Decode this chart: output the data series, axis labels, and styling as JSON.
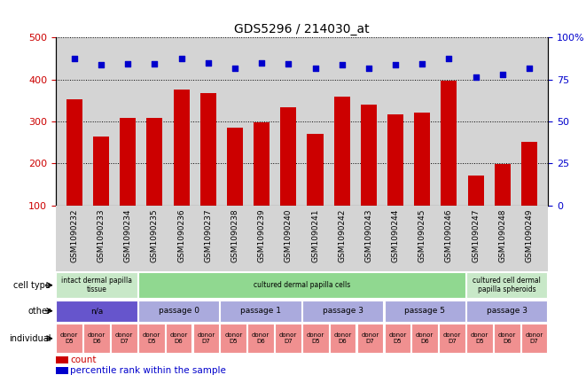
{
  "title": "GDS5296 / 214030_at",
  "samples": [
    "GSM1090232",
    "GSM1090233",
    "GSM1090234",
    "GSM1090235",
    "GSM1090236",
    "GSM1090237",
    "GSM1090238",
    "GSM1090239",
    "GSM1090240",
    "GSM1090241",
    "GSM1090242",
    "GSM1090243",
    "GSM1090244",
    "GSM1090245",
    "GSM1090246",
    "GSM1090247",
    "GSM1090248",
    "GSM1090249"
  ],
  "counts": [
    353,
    265,
    309,
    309,
    377,
    368,
    285,
    298,
    333,
    270,
    360,
    340,
    317,
    321,
    398,
    171,
    198,
    252
  ],
  "percentile_vals": [
    450,
    435,
    437,
    437,
    450,
    440,
    427,
    440,
    438,
    426,
    436,
    426,
    436,
    437,
    450,
    406,
    411,
    426
  ],
  "ylim_left": [
    100,
    500
  ],
  "yticks_left": [
    100,
    200,
    300,
    400,
    500
  ],
  "yticks_right": [
    0,
    25,
    50,
    75,
    100
  ],
  "bar_color": "#cc0000",
  "dot_color": "#0000cc",
  "chart_bg": "#d4d4d4",
  "cell_type_groups": [
    {
      "label": "intact dermal papilla\ntissue",
      "start": 0,
      "end": 3,
      "color": "#c8e8c8"
    },
    {
      "label": "cultured dermal papilla cells",
      "start": 3,
      "end": 15,
      "color": "#90d890"
    },
    {
      "label": "cultured cell dermal\npapilla spheroids",
      "start": 15,
      "end": 18,
      "color": "#c8e8c8"
    }
  ],
  "other_groups": [
    {
      "label": "n/a",
      "start": 0,
      "end": 3,
      "color": "#6655cc"
    },
    {
      "label": "passage 0",
      "start": 3,
      "end": 6,
      "color": "#aaaadd"
    },
    {
      "label": "passage 1",
      "start": 6,
      "end": 9,
      "color": "#aaaadd"
    },
    {
      "label": "passage 3",
      "start": 9,
      "end": 12,
      "color": "#aaaadd"
    },
    {
      "label": "passage 5",
      "start": 12,
      "end": 15,
      "color": "#aaaadd"
    },
    {
      "label": "passage 3",
      "start": 15,
      "end": 18,
      "color": "#aaaadd"
    }
  ],
  "individual_groups": [
    {
      "label": "donor\nD5",
      "start": 0,
      "end": 1
    },
    {
      "label": "donor\nD6",
      "start": 1,
      "end": 2
    },
    {
      "label": "donor\nD7",
      "start": 2,
      "end": 3
    },
    {
      "label": "donor\nD5",
      "start": 3,
      "end": 4
    },
    {
      "label": "donor\nD6",
      "start": 4,
      "end": 5
    },
    {
      "label": "donor\nD7",
      "start": 5,
      "end": 6
    },
    {
      "label": "donor\nD5",
      "start": 6,
      "end": 7
    },
    {
      "label": "donor\nD6",
      "start": 7,
      "end": 8
    },
    {
      "label": "donor\nD7",
      "start": 8,
      "end": 9
    },
    {
      "label": "donor\nD5",
      "start": 9,
      "end": 10
    },
    {
      "label": "donor\nD6",
      "start": 10,
      "end": 11
    },
    {
      "label": "donor\nD7",
      "start": 11,
      "end": 12
    },
    {
      "label": "donor\nD5",
      "start": 12,
      "end": 13
    },
    {
      "label": "donor\nD6",
      "start": 13,
      "end": 14
    },
    {
      "label": "donor\nD7",
      "start": 14,
      "end": 15
    },
    {
      "label": "donor\nD5",
      "start": 15,
      "end": 16
    },
    {
      "label": "donor\nD6",
      "start": 16,
      "end": 17
    },
    {
      "label": "donor\nD7",
      "start": 17,
      "end": 18
    }
  ],
  "indiv_color": "#f09090",
  "background_color": "#ffffff"
}
